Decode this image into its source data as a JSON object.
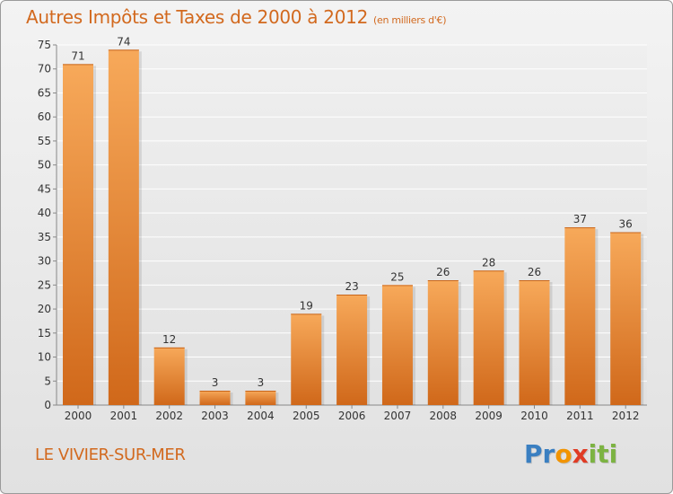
{
  "header": {
    "title": "Autres Impôts et Taxes de 2000 à 2012",
    "unit": "(en milliers d'€)"
  },
  "footer": {
    "city": "LE VIVIER-SUR-MER",
    "logo_letters": [
      {
        "ch": "P",
        "color": "#3a7fc1"
      },
      {
        "ch": "r",
        "color": "#3a7fc1"
      },
      {
        "ch": "o",
        "color": "#f29400"
      },
      {
        "ch": "x",
        "color": "#e03b24"
      },
      {
        "ch": "i",
        "color": "#7cb342"
      },
      {
        "ch": "t",
        "color": "#7cb342"
      },
      {
        "ch": "i",
        "color": "#7cb342"
      }
    ]
  },
  "colors": {
    "accent": "#d2691e",
    "bar_light": "#f7a95a",
    "bar_dark": "#d66f1f"
  },
  "chart_data": {
    "type": "bar",
    "categories": [
      "2000",
      "2001",
      "2002",
      "2003",
      "2004",
      "2005",
      "2006",
      "2007",
      "2008",
      "2009",
      "2010",
      "2011",
      "2012"
    ],
    "values": [
      71,
      74,
      12,
      3,
      3,
      19,
      23,
      25,
      26,
      28,
      26,
      37,
      36
    ],
    "title": "Autres Impôts et Taxes de 2000 à 2012",
    "ylabel": "",
    "xlabel": "",
    "ylim": [
      0,
      75
    ],
    "yticks": [
      0,
      5,
      10,
      15,
      20,
      25,
      30,
      35,
      40,
      45,
      50,
      55,
      60,
      65,
      70,
      75
    ],
    "grid": true,
    "data_labels": true
  }
}
